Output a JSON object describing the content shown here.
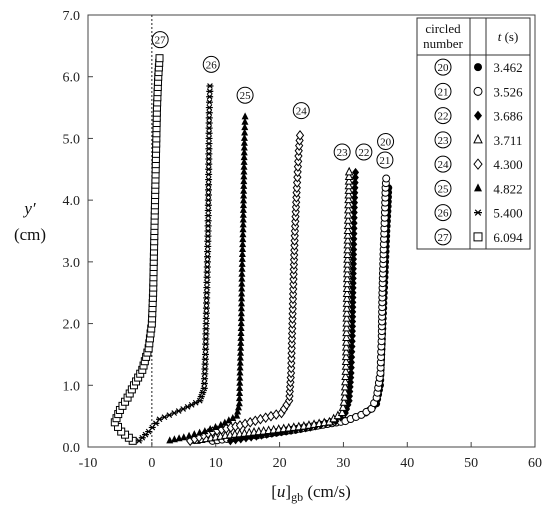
{
  "chart_data": {
    "type": "scatter",
    "title": "",
    "xlabel": "[u]gb (cm/s)",
    "ylabel": "y′ (cm)",
    "xlim": [
      -10,
      60
    ],
    "ylim": [
      0.0,
      7.0
    ],
    "xticks": [
      -10,
      0,
      10,
      20,
      30,
      40,
      50,
      60
    ],
    "yticks": [
      "0.0",
      "1.0",
      "2.0",
      "3.0",
      "4.0",
      "5.0",
      "6.0",
      "7.0"
    ],
    "grid": false,
    "legend_placement": "top-right",
    "legend_headers": {
      "number": "circled number",
      "time": "t (s)"
    },
    "series": [
      {
        "name": "20",
        "t": "3.462",
        "marker": "filled-circle",
        "label_x": 36.6,
        "label_y": 4.95,
        "points": [
          [
            16.5,
            0.18
          ],
          [
            22.5,
            0.27
          ],
          [
            26.5,
            0.35
          ],
          [
            31.0,
            0.45
          ],
          [
            33.5,
            0.55
          ],
          [
            35.2,
            0.7
          ],
          [
            35.8,
            1.0
          ],
          [
            36.0,
            1.5
          ],
          [
            36.2,
            2.0
          ],
          [
            36.4,
            2.5
          ],
          [
            36.6,
            3.0
          ],
          [
            36.8,
            3.5
          ],
          [
            37.0,
            3.9
          ],
          [
            37.1,
            4.2
          ]
        ]
      },
      {
        "name": "21",
        "t": "3.526",
        "marker": "open-circle",
        "label_x": 36.5,
        "label_y": 4.65,
        "points": [
          [
            9.5,
            0.1
          ],
          [
            17.0,
            0.2
          ],
          [
            22.0,
            0.28
          ],
          [
            26.8,
            0.36
          ],
          [
            30.3,
            0.42
          ],
          [
            32.8,
            0.52
          ],
          [
            34.4,
            0.62
          ],
          [
            35.2,
            0.8
          ],
          [
            35.8,
            1.2
          ],
          [
            36.0,
            1.8
          ],
          [
            36.1,
            2.5
          ],
          [
            36.3,
            3.2
          ],
          [
            36.5,
            3.8
          ],
          [
            36.6,
            4.2
          ],
          [
            36.7,
            4.35
          ]
        ]
      },
      {
        "name": "22",
        "t": "3.686",
        "marker": "filled-diamond",
        "label_x": 33.2,
        "label_y": 4.78,
        "points": [
          [
            12.3,
            0.1
          ],
          [
            18.8,
            0.22
          ],
          [
            24.8,
            0.32
          ],
          [
            28.8,
            0.42
          ],
          [
            30.3,
            0.55
          ],
          [
            30.9,
            0.75
          ],
          [
            31.2,
            1.2
          ],
          [
            31.4,
            1.8
          ],
          [
            31.5,
            2.5
          ],
          [
            31.6,
            3.2
          ],
          [
            31.7,
            3.8
          ],
          [
            31.8,
            4.2
          ],
          [
            31.9,
            4.45
          ]
        ]
      },
      {
        "name": "23",
        "t": "3.711",
        "marker": "open-triangle",
        "label_x": 29.8,
        "label_y": 4.78,
        "points": [
          [
            7.0,
            0.1
          ],
          [
            11.5,
            0.18
          ],
          [
            17.5,
            0.25
          ],
          [
            23.8,
            0.33
          ],
          [
            27.8,
            0.4
          ],
          [
            29.8,
            0.55
          ],
          [
            30.2,
            0.8
          ],
          [
            30.4,
            1.3
          ],
          [
            30.5,
            2.0
          ],
          [
            30.6,
            2.8
          ],
          [
            30.7,
            3.5
          ],
          [
            30.8,
            4.0
          ],
          [
            30.9,
            4.45
          ]
        ]
      },
      {
        "name": "24",
        "t": "4.300",
        "marker": "open-diamond",
        "label_x": 23.4,
        "label_y": 5.45,
        "points": [
          [
            6.0,
            0.1
          ],
          [
            9.5,
            0.25
          ],
          [
            13.8,
            0.35
          ],
          [
            17.0,
            0.45
          ],
          [
            20.3,
            0.55
          ],
          [
            21.5,
            0.75
          ],
          [
            21.8,
            1.2
          ],
          [
            22.0,
            2.0
          ],
          [
            22.2,
            2.8
          ],
          [
            22.4,
            3.5
          ],
          [
            22.7,
            4.2
          ],
          [
            23.0,
            4.8
          ],
          [
            23.2,
            5.05
          ]
        ]
      },
      {
        "name": "25",
        "t": "4.822",
        "marker": "filled-triangle",
        "label_x": 14.6,
        "label_y": 5.7,
        "points": [
          [
            2.8,
            0.1
          ],
          [
            5.0,
            0.15
          ],
          [
            8.3,
            0.25
          ],
          [
            10.8,
            0.35
          ],
          [
            13.3,
            0.5
          ],
          [
            13.7,
            0.7
          ],
          [
            13.8,
            1.2
          ],
          [
            14.0,
            2.0
          ],
          [
            14.1,
            2.8
          ],
          [
            14.3,
            3.6
          ],
          [
            14.4,
            4.3
          ],
          [
            14.5,
            5.0
          ],
          [
            14.6,
            5.35
          ]
        ]
      },
      {
        "name": "26",
        "t": "5.400",
        "marker": "asterisk",
        "label_x": 9.3,
        "label_y": 6.2,
        "points": [
          [
            -2.0,
            0.1
          ],
          [
            -0.5,
            0.25
          ],
          [
            1.2,
            0.45
          ],
          [
            3.5,
            0.55
          ],
          [
            5.6,
            0.65
          ],
          [
            7.5,
            0.75
          ],
          [
            8.2,
            0.95
          ],
          [
            8.4,
            1.5
          ],
          [
            8.6,
            2.5
          ],
          [
            8.8,
            3.5
          ],
          [
            8.9,
            4.5
          ],
          [
            9.0,
            5.5
          ],
          [
            9.1,
            5.85
          ]
        ]
      },
      {
        "name": "27",
        "t": "6.094",
        "marker": "open-square",
        "label_x": 1.3,
        "label_y": 6.6,
        "points": [
          [
            -3.0,
            0.1
          ],
          [
            -4.8,
            0.25
          ],
          [
            -5.8,
            0.4
          ],
          [
            -5.0,
            0.6
          ],
          [
            -3.8,
            0.8
          ],
          [
            -2.8,
            1.0
          ],
          [
            -1.5,
            1.25
          ],
          [
            -0.5,
            1.6
          ],
          [
            0.0,
            2.0
          ],
          [
            0.2,
            2.5
          ],
          [
            0.3,
            3.0
          ],
          [
            0.4,
            3.5
          ],
          [
            0.5,
            4.0
          ],
          [
            0.6,
            4.5
          ],
          [
            0.7,
            5.0
          ],
          [
            0.8,
            5.5
          ],
          [
            1.0,
            6.0
          ],
          [
            1.2,
            6.3
          ]
        ]
      }
    ]
  }
}
